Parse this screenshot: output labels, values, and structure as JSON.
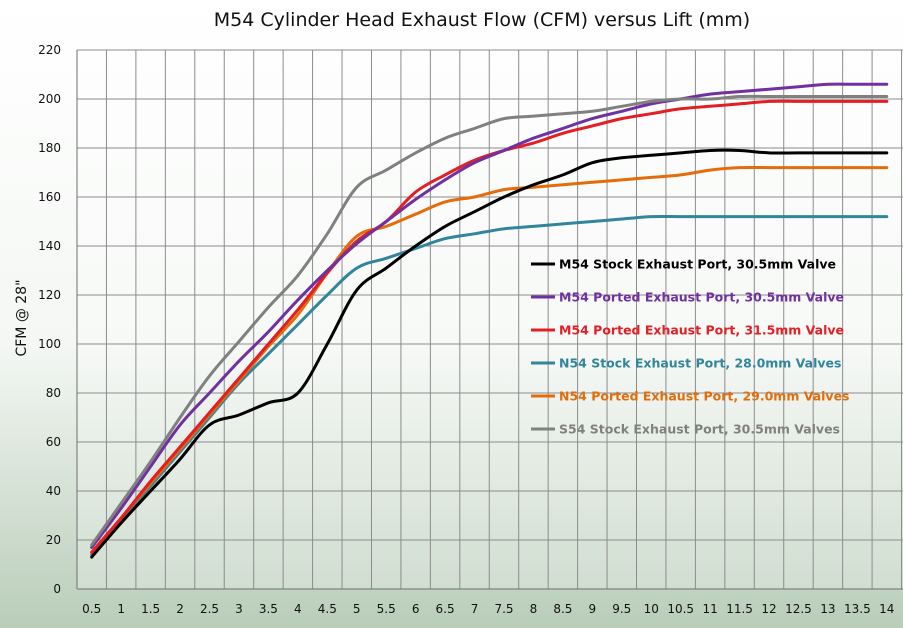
{
  "chart_data": {
    "type": "line",
    "title": "M54 Cylinder Head Exhaust Flow (CFM) versus Lift (mm)",
    "xlabel": "",
    "ylabel": "CFM @ 28\"",
    "ylim": [
      0,
      220
    ],
    "ytick_step": 20,
    "grid": true,
    "legend_position": "center-right",
    "x": [
      0.5,
      1,
      1.5,
      2,
      2.5,
      3,
      3.5,
      4,
      4.5,
      5,
      5.5,
      6,
      6.5,
      7,
      7.5,
      8,
      8.5,
      9,
      9.5,
      10,
      10.5,
      11,
      11.5,
      12,
      12.5,
      13,
      13.5,
      14
    ],
    "x_tick_labels": [
      "0.5",
      "1",
      "1.5",
      "2",
      "2.5",
      "3",
      "3.5",
      "4",
      "4.5",
      "5",
      "5.5",
      "6",
      "6.5",
      "7",
      "7.5",
      "8",
      "8.5",
      "9",
      "9.5",
      "10",
      "10.5",
      "11",
      "11.5",
      "12",
      "12.5",
      "13",
      "13.5",
      "14"
    ],
    "series": [
      {
        "name": "M54 Stock Exhaust Port, 30.5mm Valve",
        "color": "#000000",
        "values": [
          13,
          27,
          40,
          53,
          67,
          71,
          76,
          80,
          100,
          122,
          131,
          140,
          148,
          154,
          160,
          165,
          169,
          174,
          176,
          177,
          178,
          179,
          179,
          178,
          178,
          178,
          178,
          178
        ]
      },
      {
        "name": "M54 Ported Exhaust Port, 30.5mm Valve",
        "color": "#7030A0",
        "values": [
          17,
          33,
          50,
          67,
          80,
          93,
          105,
          118,
          130,
          141,
          150,
          159,
          167,
          174,
          179,
          184,
          188,
          192,
          195,
          198,
          200,
          202,
          203,
          204,
          205,
          206,
          206,
          206
        ]
      },
      {
        "name": "M54 Ported Exhaust Port, 31.5mm Valve",
        "color": "#E31E24",
        "values": [
          15,
          29,
          44,
          58,
          72,
          86,
          100,
          114,
          129,
          142,
          150,
          162,
          169,
          175,
          179,
          182,
          186,
          189,
          192,
          194,
          196,
          197,
          198,
          199,
          199,
          199,
          199,
          199
        ]
      },
      {
        "name": "N54 Stock Exhaust Port, 28.0mm Valves",
        "color": "#31859C",
        "values": [
          14,
          28,
          42,
          56,
          70,
          84,
          96,
          108,
          120,
          131,
          135,
          139,
          143,
          145,
          147,
          148,
          149,
          150,
          151,
          152,
          152,
          152,
          152,
          152,
          152,
          152,
          152,
          152
        ]
      },
      {
        "name": "N54 Ported Exhaust Port, 29.0mm Valves",
        "color": "#E46C0A",
        "values": [
          15,
          29,
          43,
          57,
          71,
          85,
          99,
          112,
          129,
          144,
          148,
          153,
          158,
          160,
          163,
          164,
          165,
          166,
          167,
          168,
          169,
          171,
          172,
          172,
          172,
          172,
          172,
          172
        ]
      },
      {
        "name": "S54 Stock Exhaust Port, 30.5mm Valves",
        "color": "#808080",
        "values": [
          18,
          35,
          52,
          70,
          87,
          101,
          115,
          128,
          145,
          164,
          171,
          178,
          184,
          188,
          192,
          193,
          194,
          195,
          197,
          199,
          200,
          200,
          201,
          201,
          201,
          201,
          201,
          201
        ]
      }
    ]
  }
}
